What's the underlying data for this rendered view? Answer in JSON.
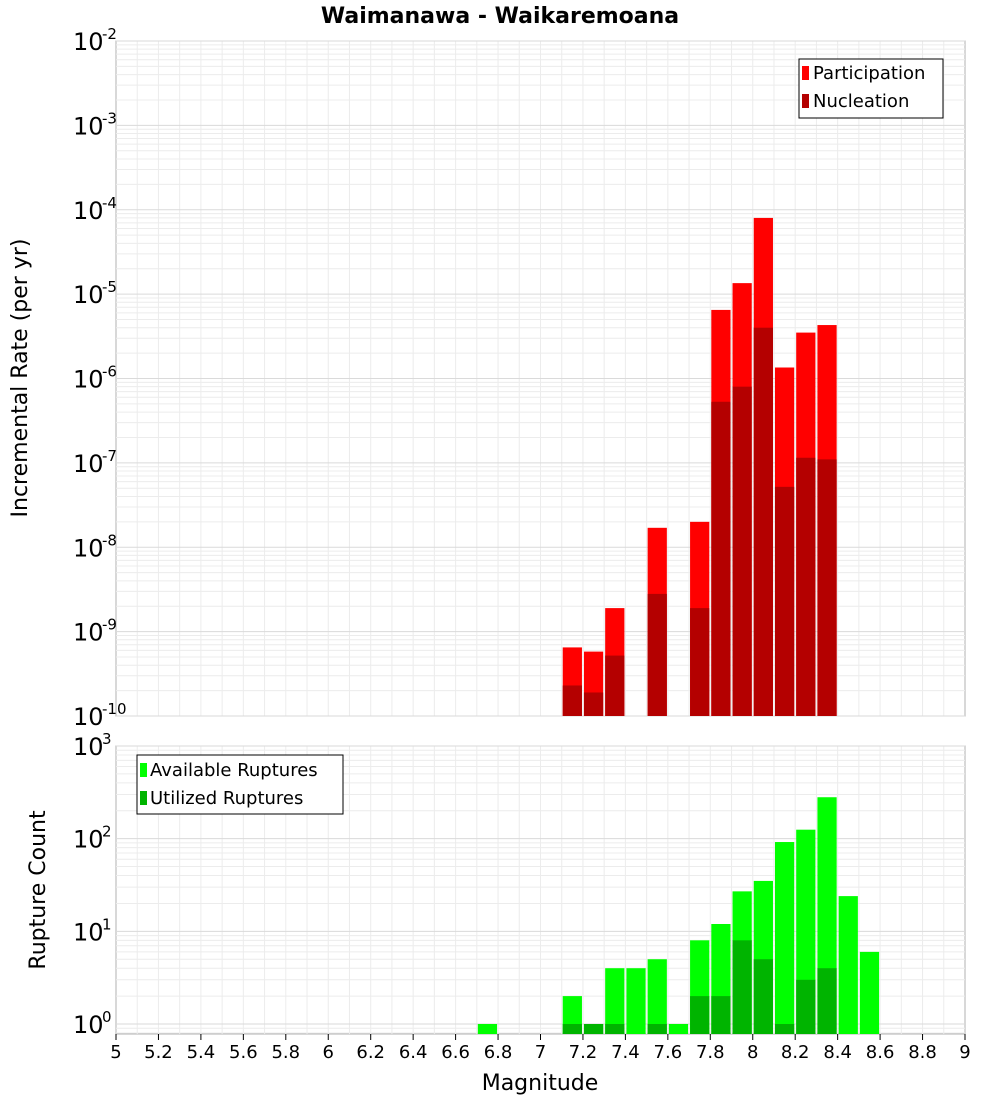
{
  "chart_data": [
    {
      "type": "bar",
      "title": "Waimanawa - Waikaremoana",
      "xlabel": "",
      "ylabel": "Incremental Rate (per yr)",
      "yscale": "log",
      "xlim": [
        5,
        9
      ],
      "ylim": [
        1e-10,
        0.01
      ],
      "y_exponents": [
        "-10",
        "-9",
        "-8",
        "-7",
        "-6",
        "-5",
        "-4",
        "-3",
        "-2"
      ],
      "grid": true,
      "legend_position": "top-right",
      "bar_width": 0.1,
      "series": [
        {
          "name": "Participation",
          "color": "#ff0000",
          "x": [
            7.15,
            7.25,
            7.35,
            7.55,
            7.75,
            7.85,
            7.95,
            8.05,
            8.15,
            8.25,
            8.35
          ],
          "values": [
            6.5e-10,
            5.8e-10,
            1.9e-09,
            1.7e-08,
            2e-08,
            6.5e-06,
            1.35e-05,
            8e-05,
            1.35e-06,
            3.5e-06,
            4.3e-06
          ]
        },
        {
          "name": "Nucleation",
          "color": "#b40000",
          "x": [
            7.15,
            7.25,
            7.35,
            7.55,
            7.75,
            7.85,
            7.95,
            8.05,
            8.15,
            8.25,
            8.35
          ],
          "values": [
            2.3e-10,
            1.9e-10,
            5.2e-10,
            2.8e-09,
            1.9e-09,
            5.3e-07,
            8e-07,
            4e-06,
            5.2e-08,
            1.15e-07,
            1.1e-07
          ]
        }
      ]
    },
    {
      "type": "bar",
      "xlabel": "Magnitude",
      "ylabel": "Rupture Count",
      "yscale": "log",
      "xlim": [
        5,
        9
      ],
      "ylim": [
        0.78,
        1000
      ],
      "y_exponents": [
        "0",
        "1",
        "2",
        "3"
      ],
      "x_ticks": [
        "5",
        "5.2",
        "5.4",
        "5.6",
        "5.8",
        "6",
        "6.2",
        "6.4",
        "6.6",
        "6.8",
        "7",
        "7.2",
        "7.4",
        "7.6",
        "7.8",
        "8",
        "8.2",
        "8.4",
        "8.6",
        "8.8",
        "9"
      ],
      "grid": true,
      "legend_position": "top-left",
      "bar_width": 0.1,
      "series": [
        {
          "name": "Available Ruptures",
          "color": "#00ff00",
          "x": [
            6.75,
            7.15,
            7.25,
            7.35,
            7.45,
            7.55,
            7.65,
            7.75,
            7.85,
            7.95,
            8.05,
            8.15,
            8.25,
            8.35,
            8.45,
            8.55
          ],
          "values": [
            1,
            2,
            1,
            4,
            4,
            5,
            1,
            8,
            12,
            27,
            35,
            92,
            125,
            280,
            24,
            6
          ]
        },
        {
          "name": "Utilized Ruptures",
          "color": "#00b400",
          "x": [
            7.15,
            7.25,
            7.35,
            7.55,
            7.75,
            7.85,
            7.95,
            8.05,
            8.15,
            8.25,
            8.35
          ],
          "values": [
            1,
            1,
            1,
            1,
            2,
            2,
            8,
            5,
            1,
            3,
            4
          ]
        }
      ]
    }
  ]
}
